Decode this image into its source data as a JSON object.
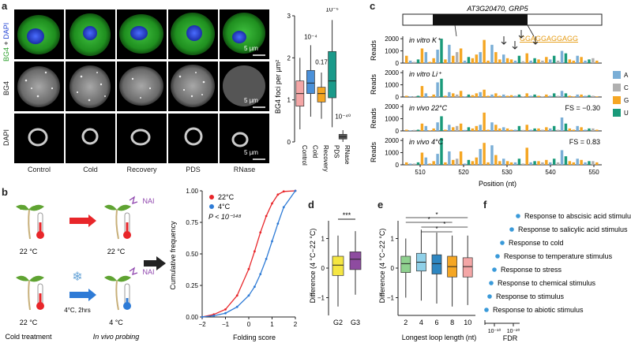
{
  "panels": {
    "a": {
      "letter": "a",
      "row_labels": {
        "merge_bg4": "BG4",
        "merge_plus": " + ",
        "merge_dapi": "DAPI",
        "bg4": "BG4",
        "dapi": "DAPI"
      },
      "conditions": [
        "Control",
        "Cold",
        "Recovery",
        "PDS",
        "RNase"
      ],
      "scale_label": "5 µm",
      "boxplot": {
        "ylabel": "BG4 foci per µm²",
        "yticks": [
          "0",
          "1",
          "2",
          "3"
        ],
        "ylim": [
          0,
          3
        ],
        "categories": [
          "Control",
          "Cold",
          "Recovery",
          "PDS",
          "RNase"
        ],
        "annotations": [
          "10⁻⁴",
          "0.17",
          "10⁻⁶",
          "10⁻⁴⁰"
        ],
        "colors": [
          "#f4a6a6",
          "#4a90d9",
          "#f5a623",
          "#1a9a8a",
          "#555555"
        ],
        "boxes": [
          {
            "q1": 0.85,
            "median": 1.15,
            "q3": 1.45,
            "lo": 0.3,
            "hi": 2.0
          },
          {
            "q1": 1.15,
            "median": 1.4,
            "q3": 1.7,
            "lo": 0.6,
            "hi": 2.3
          },
          {
            "q1": 0.95,
            "median": 1.15,
            "q3": 1.3,
            "lo": 0.55,
            "hi": 1.65
          },
          {
            "q1": 1.05,
            "median": 1.45,
            "q3": 2.15,
            "lo": 0.35,
            "hi": 2.9
          },
          {
            "q1": 0.07,
            "median": 0.12,
            "q3": 0.18,
            "lo": 0.0,
            "hi": 0.28
          }
        ]
      }
    },
    "b": {
      "letter": "b",
      "temp_top_left": "22 °C",
      "temp_top_right": "22 °C",
      "temp_bottom_left": "22 °C",
      "temp_bottom_right": "4 °C",
      "nai1": "NAI",
      "nai2": "NAI",
      "cold_label": "4°C, 2hrs",
      "bottom_left_caption": "Cold treatment",
      "bottom_right_caption": "In vivo probing",
      "cdf": {
        "xlabel": "Folding score",
        "ylabel": "Cumulative frequency",
        "xticks": [
          "−2",
          "−1",
          "0",
          "1",
          "2"
        ],
        "yticks": [
          "0.00",
          "0.25",
          "0.50",
          "0.75",
          "1.00"
        ],
        "legend": [
          "22°C",
          "4°C"
        ],
        "pvalue": "P < 10⁻¹⁴⁸",
        "colors": [
          "#e8262a",
          "#2e7bd6"
        ],
        "series": [
          {
            "name": "22°C",
            "x": [
              -2,
              -1.5,
              -1,
              -0.5,
              0,
              0.25,
              0.5,
              0.75,
              1.0,
              1.25,
              1.5,
              2.0
            ],
            "y": [
              0,
              0.02,
              0.06,
              0.17,
              0.38,
              0.52,
              0.67,
              0.8,
              0.9,
              0.97,
              0.995,
              1.0
            ]
          },
          {
            "name": "4°C",
            "x": [
              -2,
              -1.5,
              -1,
              -0.5,
              0,
              0.25,
              0.5,
              0.75,
              1.0,
              1.25,
              1.5,
              2.0
            ],
            "y": [
              0,
              0.01,
              0.03,
              0.08,
              0.17,
              0.24,
              0.34,
              0.46,
              0.6,
              0.74,
              0.87,
              1.0
            ]
          }
        ]
      }
    },
    "c": {
      "letter": "c",
      "gene": "AT3G20470, GRP5",
      "motif": "GGAGGAGGAGG",
      "ylabel": "Reads",
      "xlabel": "Position (nt)",
      "xticks": [
        "510",
        "520",
        "530",
        "540",
        "550"
      ],
      "tracks": [
        {
          "label": "in vitro K⁺",
          "yticks": [
            "0",
            "1000",
            "2000"
          ],
          "fs": ""
        },
        {
          "label": "in vitro Li⁺",
          "yticks": [
            "0",
            "1000",
            "2000"
          ],
          "fs": ""
        },
        {
          "label": "in vivo 22°C",
          "yticks": [
            "0",
            "1000",
            "2000"
          ],
          "fs": "FS = −0.30"
        },
        {
          "label": "in vivo 4°C",
          "yticks": [
            "0",
            "1000",
            "2000"
          ],
          "fs": "FS = 0.83"
        }
      ],
      "legend": [
        {
          "base": "A",
          "color": "#7aaed6"
        },
        {
          "base": "C",
          "color": "#b0b0b0"
        },
        {
          "base": "G",
          "color": "#f5a623"
        },
        {
          "base": "U",
          "color": "#1a9a7a"
        }
      ]
    },
    "d": {
      "letter": "d",
      "ylabel": "Difference (4 °C−22 °C)",
      "yticks": [
        "−1",
        "0",
        "1"
      ],
      "categories": [
        "G2",
        "G3"
      ],
      "sig": "***",
      "colors": [
        "#f5e642",
        "#8e4ba0"
      ],
      "boxes": [
        {
          "q1": -0.25,
          "median": 0.1,
          "q3": 0.4,
          "lo": -1.3,
          "hi": 1.1
        },
        {
          "q1": -0.05,
          "median": 0.3,
          "q3": 0.55,
          "lo": -0.9,
          "hi": 1.25
        }
      ]
    },
    "e": {
      "letter": "e",
      "ylabel": "Difference (4 °C−22 °C)",
      "xlabel": "Longest loop length (nt)",
      "yticks": [
        "−1",
        "0",
        "1"
      ],
      "categories": [
        "2",
        "4",
        "6",
        "8",
        "10"
      ],
      "sig": [
        "*",
        "*",
        "*",
        "*"
      ],
      "colors": [
        "#8fd18f",
        "#8fd0e8",
        "#2e86c1",
        "#f5a623",
        "#f4a6a6"
      ],
      "boxes": [
        {
          "q1": -0.15,
          "median": 0.15,
          "q3": 0.4,
          "lo": -1.0,
          "hi": 1.0
        },
        {
          "q1": -0.1,
          "median": 0.2,
          "q3": 0.5,
          "lo": -1.1,
          "hi": 1.3
        },
        {
          "q1": -0.2,
          "median": 0.15,
          "q3": 0.45,
          "lo": -1.2,
          "hi": 1.2
        },
        {
          "q1": -0.3,
          "median": 0.05,
          "q3": 0.4,
          "lo": -1.3,
          "hi": 1.1
        },
        {
          "q1": -0.3,
          "median": 0.05,
          "q3": 0.35,
          "lo": -1.25,
          "hi": 1.1
        }
      ]
    },
    "f": {
      "letter": "f",
      "xlabel": "FDR",
      "xticks": [
        "10⁻¹⁰",
        "10⁻²⁰"
      ],
      "terms": [
        "Response to abscisic acid stimulus",
        "Response to salicylic acid stimulus",
        "Response to cold",
        "Response to temperature stimulus",
        "Response to stress",
        "Response to chemical stimulus",
        "Response to stimulus",
        "Response to abiotic stimulus"
      ],
      "dot_color": "#3a9ad9"
    }
  }
}
